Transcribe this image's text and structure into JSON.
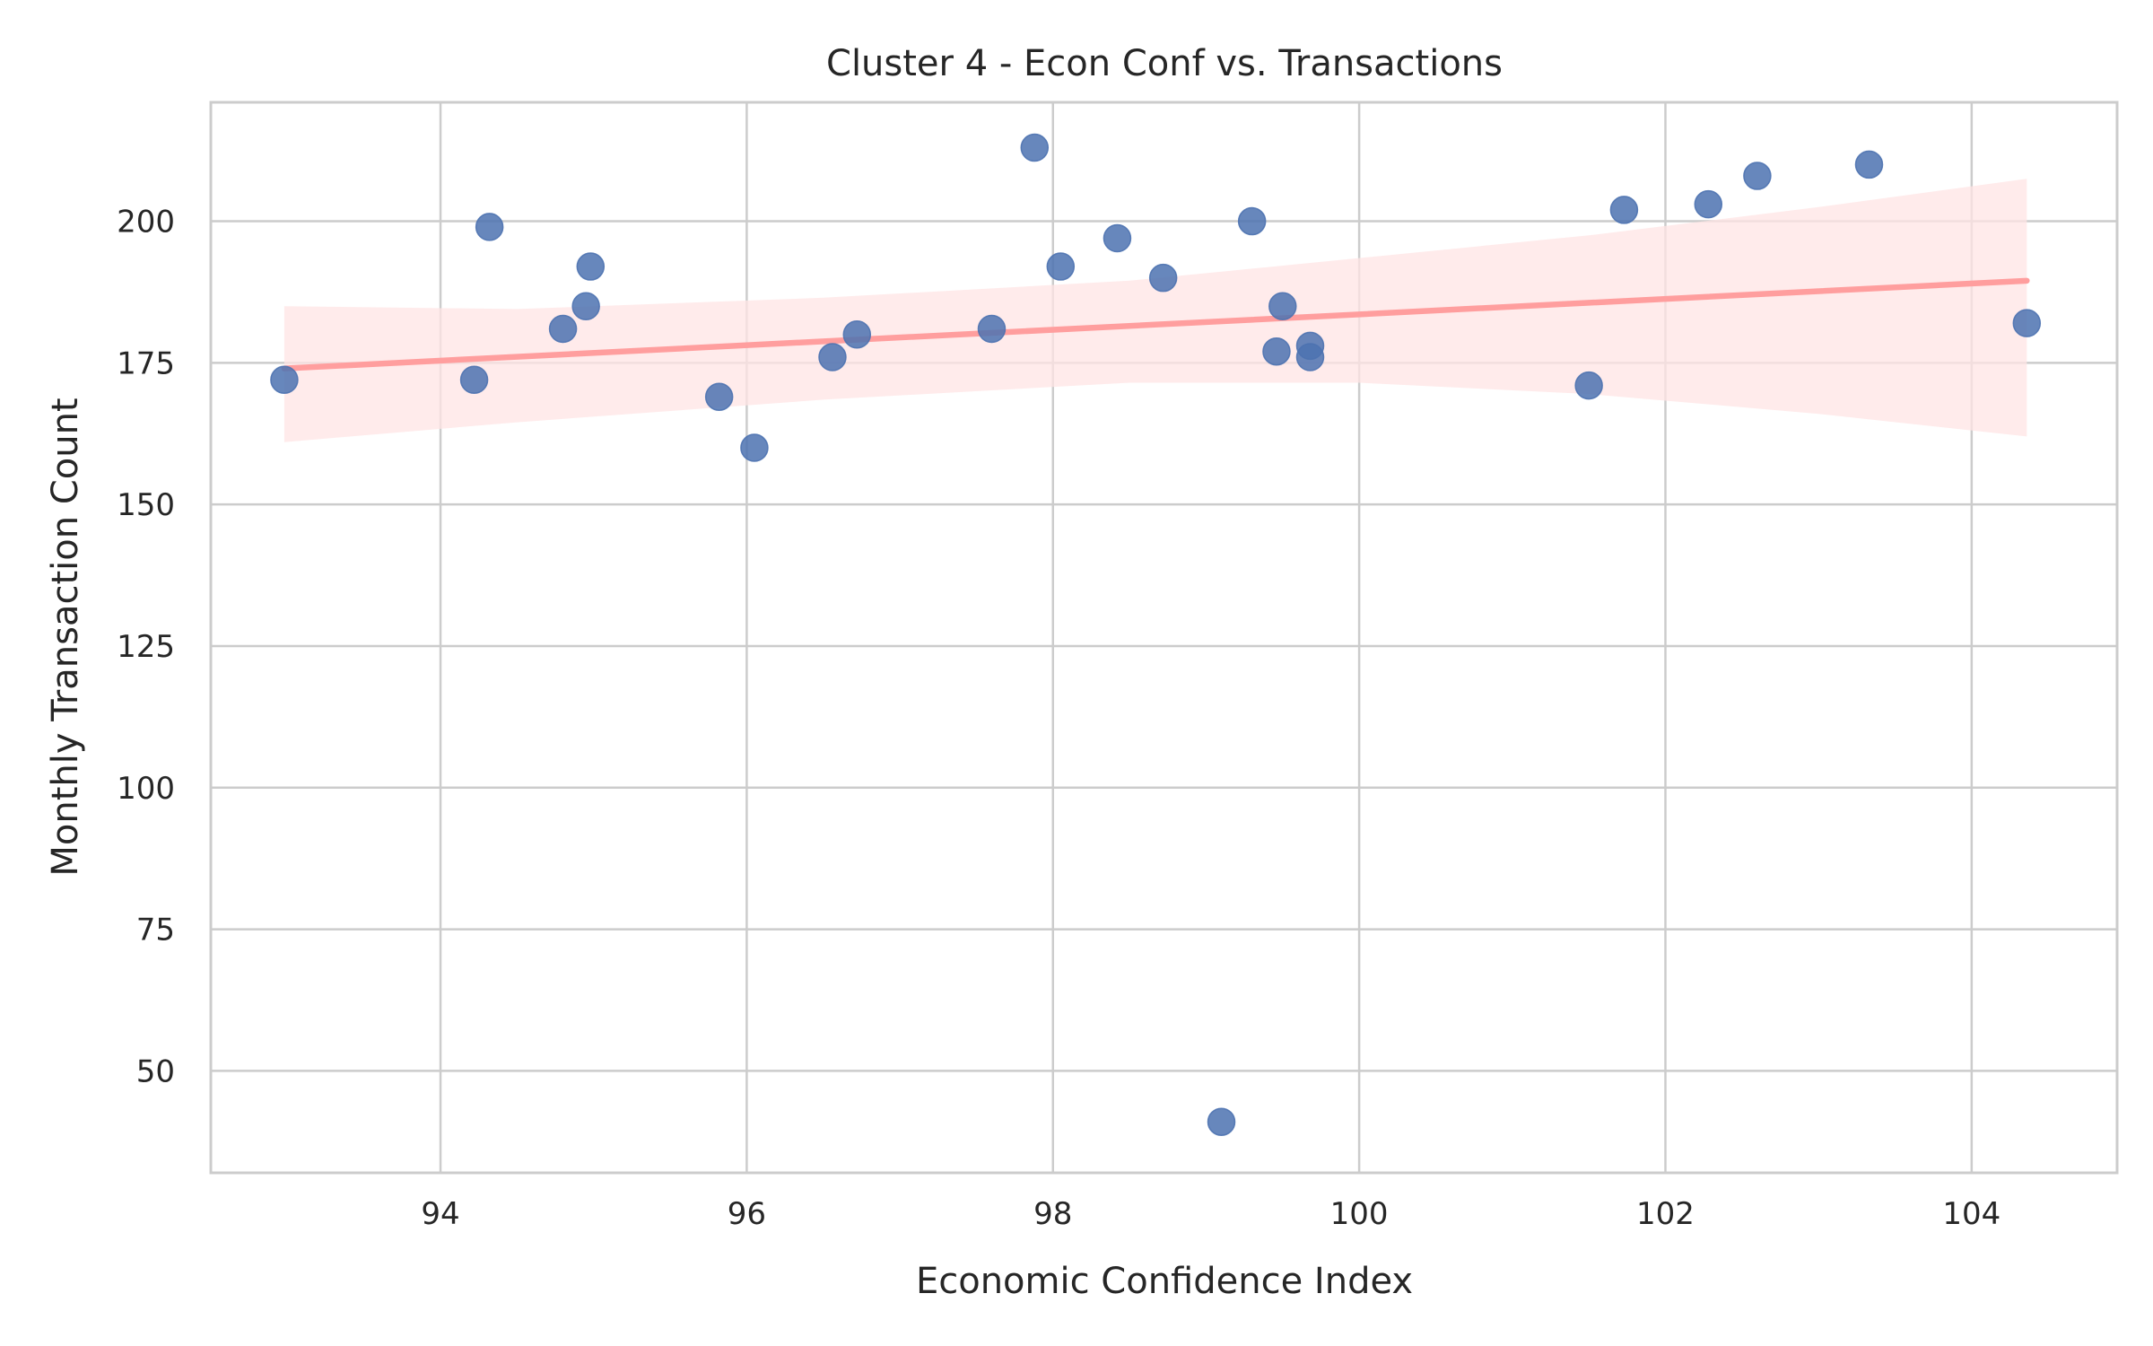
{
  "chart_data": {
    "type": "scatter",
    "title": "Cluster 4 - Econ Conf vs. Transactions",
    "xlabel": "Economic Confidence Index",
    "ylabel": "Monthly Transaction Count",
    "xlim": [
      92.5,
      104.95
    ],
    "ylim": [
      32,
      221
    ],
    "xticks": [
      94,
      96,
      98,
      100,
      102,
      104
    ],
    "yticks": [
      50,
      75,
      100,
      125,
      150,
      175,
      200
    ],
    "grid": true,
    "colors": {
      "points": "#4c72b0",
      "fit": "#ff9e9e",
      "band": "#ffe4e4"
    },
    "points": [
      {
        "x": 92.98,
        "y": 172
      },
      {
        "x": 94.22,
        "y": 172
      },
      {
        "x": 94.32,
        "y": 199
      },
      {
        "x": 94.8,
        "y": 181
      },
      {
        "x": 94.95,
        "y": 185
      },
      {
        "x": 94.98,
        "y": 192
      },
      {
        "x": 95.82,
        "y": 169
      },
      {
        "x": 96.05,
        "y": 160
      },
      {
        "x": 96.56,
        "y": 176
      },
      {
        "x": 96.72,
        "y": 180
      },
      {
        "x": 97.6,
        "y": 181
      },
      {
        "x": 97.88,
        "y": 213
      },
      {
        "x": 98.05,
        "y": 192
      },
      {
        "x": 98.42,
        "y": 197
      },
      {
        "x": 98.72,
        "y": 190
      },
      {
        "x": 99.1,
        "y": 41
      },
      {
        "x": 99.3,
        "y": 200
      },
      {
        "x": 99.46,
        "y": 177
      },
      {
        "x": 99.5,
        "y": 185
      },
      {
        "x": 99.68,
        "y": 178
      },
      {
        "x": 99.68,
        "y": 176
      },
      {
        "x": 101.5,
        "y": 171
      },
      {
        "x": 101.73,
        "y": 202
      },
      {
        "x": 102.28,
        "y": 203
      },
      {
        "x": 102.6,
        "y": 208
      },
      {
        "x": 103.33,
        "y": 210
      },
      {
        "x": 104.36,
        "y": 182
      }
    ],
    "regression": {
      "line": [
        [
          92.98,
          174
        ],
        [
          104.36,
          189.5
        ]
      ],
      "ci_upper": [
        [
          92.98,
          185
        ],
        [
          94.5,
          184.5
        ],
        [
          96.5,
          186.5
        ],
        [
          98.5,
          189.5
        ],
        [
          100.0,
          193.5
        ],
        [
          101.5,
          197.5
        ],
        [
          103.0,
          202.5
        ],
        [
          104.36,
          207.5
        ]
      ],
      "ci_lower": [
        [
          92.98,
          161
        ],
        [
          94.5,
          164.5
        ],
        [
          96.5,
          168.5
        ],
        [
          98.5,
          171.5
        ],
        [
          100.0,
          171.5
        ],
        [
          101.5,
          169.5
        ],
        [
          103.0,
          166.0
        ],
        [
          104.36,
          162.0
        ]
      ]
    }
  }
}
